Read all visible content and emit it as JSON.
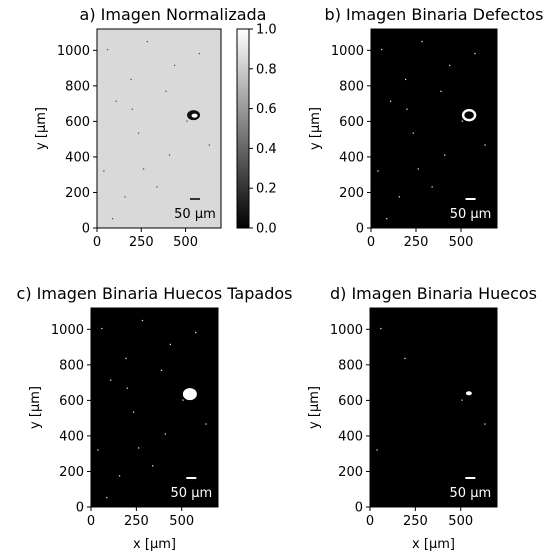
{
  "chart_data": [
    {
      "type": "image",
      "title": "a) Imagen Normalizada",
      "xlabel": "",
      "ylabel": "y [µm]",
      "xlim": [
        0,
        700
      ],
      "ylim": [
        0,
        1120
      ],
      "xticks": [
        "0",
        "250",
        "500"
      ],
      "yticks": [
        "0",
        "200",
        "400",
        "600",
        "800",
        "1000"
      ],
      "background": "light-gray",
      "scale_bar": "50 µm",
      "colorbar": {
        "range": [
          0.0,
          1.0
        ],
        "ticks": [
          "0.0",
          "0.2",
          "0.4",
          "0.6",
          "0.8",
          "1.0"
        ],
        "colormap": "gray"
      },
      "features": [
        {
          "kind": "defect",
          "x": 545,
          "y": 635
        }
      ]
    },
    {
      "type": "image",
      "title": "b) Imagen Binaria Defectos",
      "xlabel": "",
      "ylabel": "y [µm]",
      "xlim": [
        0,
        700
      ],
      "ylim": [
        0,
        1120
      ],
      "xticks": [
        "0",
        "250",
        "500"
      ],
      "yticks": [
        "0",
        "200",
        "400",
        "600",
        "800",
        "1000"
      ],
      "background": "black",
      "scale_bar": "50 µm",
      "features": [
        {
          "kind": "ring",
          "x": 545,
          "y": 635
        }
      ]
    },
    {
      "type": "image",
      "title": "c) Imagen Binaria Huecos Tapados",
      "xlabel": "x [µm]",
      "ylabel": "y [µm]",
      "xlim": [
        0,
        700
      ],
      "ylim": [
        0,
        1120
      ],
      "xticks": [
        "0",
        "250",
        "500"
      ],
      "yticks": [
        "0",
        "200",
        "400",
        "600",
        "800",
        "1000"
      ],
      "background": "black",
      "scale_bar": "50 µm",
      "features": [
        {
          "kind": "filled-blob",
          "x": 545,
          "y": 635
        }
      ]
    },
    {
      "type": "image",
      "title": "d) Imagen Binaria Huecos",
      "xlabel": "x [µm]",
      "ylabel": "y [µm]",
      "xlim": [
        0,
        700
      ],
      "ylim": [
        0,
        1120
      ],
      "xticks": [
        "0",
        "250",
        "500"
      ],
      "yticks": [
        "0",
        "200",
        "400",
        "600",
        "800",
        "1000"
      ],
      "background": "black",
      "scale_bar": "50 µm",
      "features": [
        {
          "kind": "small-blob",
          "x": 545,
          "y": 640
        }
      ]
    }
  ],
  "colors": {
    "light_bg": "#d9d9d9",
    "dark_bg": "#000000",
    "foreground": "#ffffff"
  }
}
